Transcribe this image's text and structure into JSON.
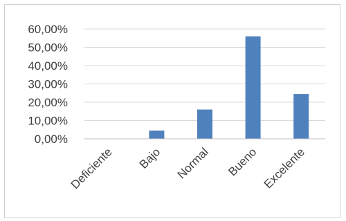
{
  "chart_data": {
    "type": "bar",
    "categories": [
      "Deficiente",
      "Bajo",
      "Normal",
      "Bueno",
      "Excelente"
    ],
    "values": [
      0.0,
      4.5,
      16.0,
      56.0,
      24.5
    ],
    "y_ticks": [
      "60,00%",
      "50,00%",
      "40,00%",
      "30,00%",
      "20,00%",
      "10,00%",
      "0,00%"
    ],
    "ylim": [
      0,
      60
    ],
    "grid": true,
    "bar_color": "#4f81bd",
    "grid_color": "#d9d9d9",
    "axis_color": "#bfbfbf"
  }
}
